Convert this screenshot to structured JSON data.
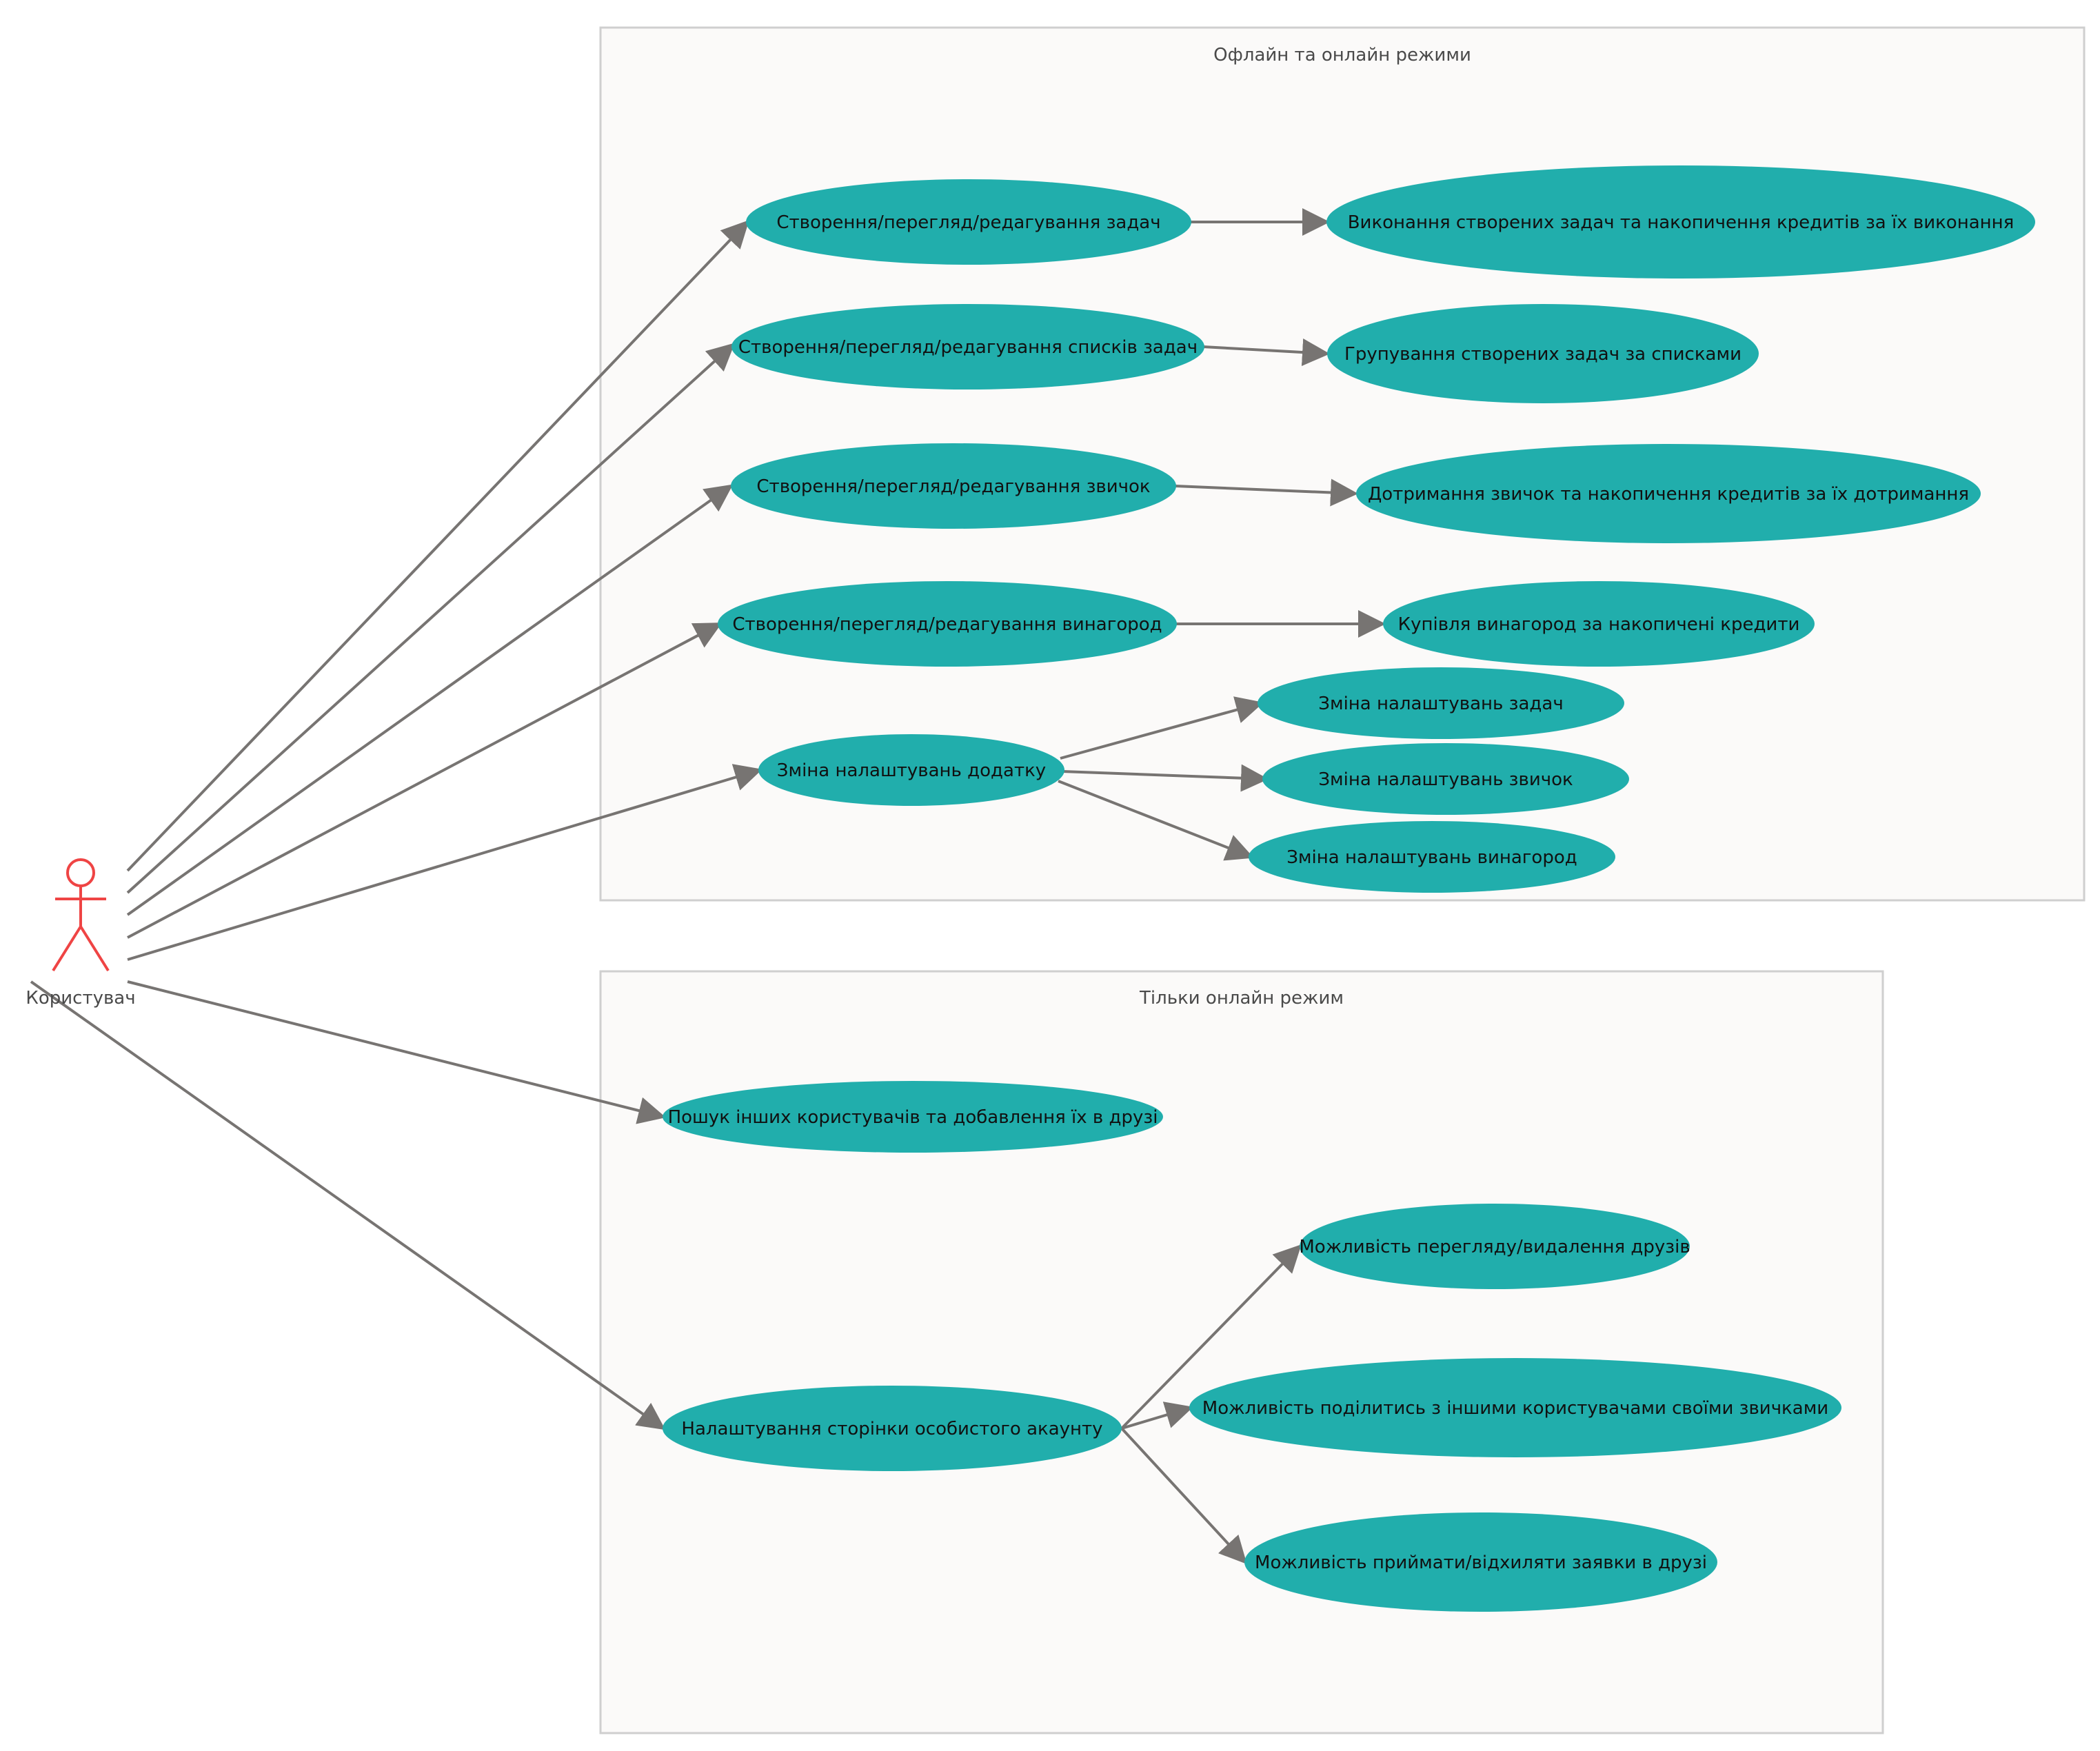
{
  "actor": {
    "label": "Користувач"
  },
  "packages": {
    "offline_online": {
      "title": "Офлайн та онлайн режими"
    },
    "online_only": {
      "title": "Тільки онлайн режим"
    }
  },
  "use_cases": {
    "tasks_crud": "Створення/перегляд/редагування задач",
    "tasks_complete": "Виконання створених задач та накопичення кредитів за їх виконання",
    "lists_crud": "Створення/перегляд/редагування списків задач",
    "lists_group": "Групування створених задач за списками",
    "habits_crud": "Створення/перегляд/редагування звичок",
    "habits_keep": "Дотримання звичок та накопичення кредитів за їх дотримання",
    "rewards_crud": "Створення/перегляд/редагування винагород",
    "rewards_buy": "Купівля винагород за накопичені кредити",
    "app_settings": "Зміна налаштувань додатку",
    "task_settings": "Зміна налаштувань задач",
    "habit_settings": "Зміна налаштувань звичок",
    "reward_settings": "Зміна налаштувань винагород",
    "find_users": "Пошук інших користувачів та добавлення їх в друзі",
    "account_settings": "Налаштування сторінки особистого акаунту",
    "view_friends": "Можливість перегляду/видалення друзів",
    "share_habits": "Можливість поділитись з іншими користувачами своїми звичками",
    "friend_requests": "Можливість приймати/відхиляти заявки в друзі"
  },
  "colors": {
    "use_case_fill": "#21aeac",
    "actor": "#ef4444",
    "edge": "#777472",
    "package_fill": "#fbfaf9",
    "package_border": "#cfcfcf"
  }
}
